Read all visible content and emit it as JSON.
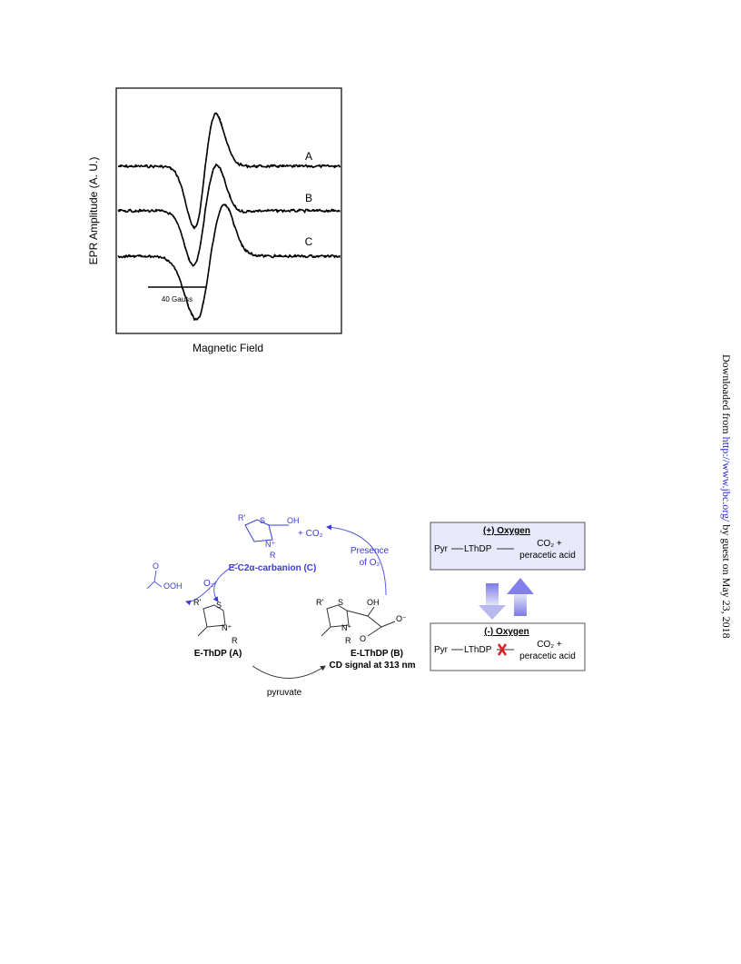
{
  "figure_epr": {
    "y_label": "EPR Amplitude (A. U.)",
    "x_label": "Magnetic Field",
    "traces": [
      "A",
      "B",
      "C"
    ],
    "scale_bar": "40 Gauss"
  },
  "scheme": {
    "carbanion": {
      "atoms": [
        "R'",
        "S",
        "OH",
        "N⁺",
        "R"
      ],
      "label": "E-C2α-carbanion (C)"
    },
    "co2": "+ CO₂",
    "o2": "O₂",
    "presence": [
      "Presence",
      "of O₂"
    ],
    "peracid": [
      "O",
      "OOH"
    ],
    "thdp": {
      "atoms": [
        "R'",
        "S",
        "N⁺",
        "R"
      ],
      "label": "E-ThDP (A)"
    },
    "lthdp": {
      "atoms": [
        "R'",
        "S",
        "OH",
        "N⁺",
        "R",
        "O",
        "O⁻"
      ],
      "label": "E-LThDP (B)",
      "note": "CD signal at 313 nm"
    },
    "pyruvate": "pyruvate",
    "boxes": [
      {
        "title": "(+) Oxygen",
        "pyr": "Pyr",
        "lthdp": "LThDP",
        "products": [
          "CO₂ +",
          "peracetic acid"
        ]
      },
      {
        "title": "(-) Oxygen",
        "pyr": "Pyr",
        "lthdp": "LThDP",
        "products": [
          "CO₂ +",
          "peracetic acid"
        ]
      }
    ]
  },
  "sidebar": [
    "Downloaded from ",
    "http://www.jbc.org/",
    " by guest on May 23, 2018"
  ]
}
